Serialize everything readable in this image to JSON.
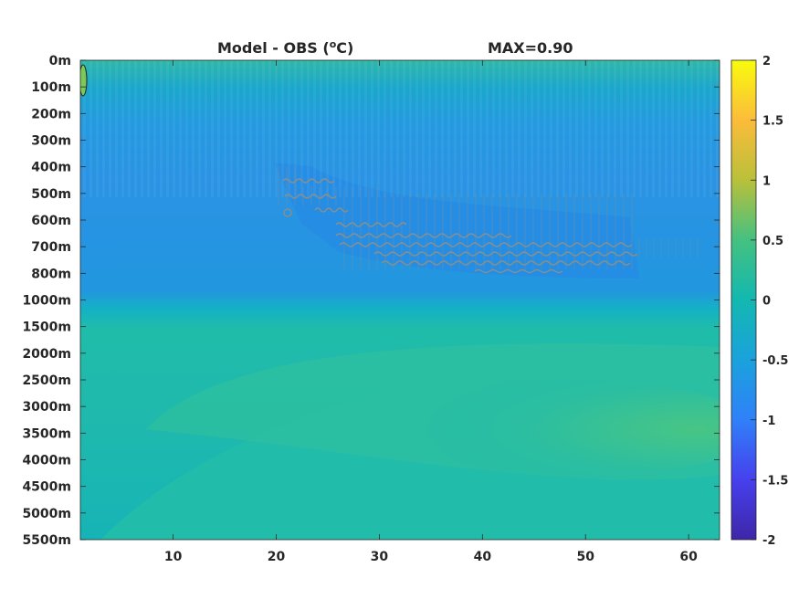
{
  "chart_data": {
    "type": "heatmap",
    "title": {
      "left_prefix": "Model - OBS (",
      "left_superscript": "o",
      "left_suffix": "C)",
      "right": "MAX=0.90"
    },
    "xlim": [
      1,
      63
    ],
    "x_ticks": [
      10,
      20,
      30,
      40,
      50,
      60
    ],
    "y_tick_labels": [
      "0m",
      "100m",
      "200m",
      "300m",
      "400m",
      "500m",
      "600m",
      "700m",
      "800m",
      "1000m",
      "1500m",
      "2000m",
      "2500m",
      "3000m",
      "3500m",
      "4000m",
      "4500m",
      "5000m",
      "5500m"
    ],
    "colorbar": {
      "range": [
        -2,
        2
      ],
      "ticks": [
        "2",
        "1.5",
        "1",
        "0.5",
        "0",
        "-0.5",
        "-1",
        "-1.5",
        "-2"
      ],
      "colormap": "parula"
    },
    "grid": false,
    "features": [
      {
        "name": "upper band",
        "depth_range": [
          "0m",
          "100m"
        ],
        "value": 0.1
      },
      {
        "name": "cold layer",
        "depth_range": [
          "200m",
          "1000m"
        ],
        "value": -0.6
      },
      {
        "name": "cold core",
        "x_range": [
          20,
          61
        ],
        "depth_range": [
          "400m",
          "800m"
        ],
        "value": -0.8
      },
      {
        "name": "deep warm tongue",
        "x_range": [
          20,
          63
        ],
        "depth_range": [
          "2500m",
          "4000m"
        ],
        "value": 0.3
      },
      {
        "name": "coastal patch",
        "x": 1,
        "depth": "100m",
        "value": 0.7
      }
    ]
  },
  "colors": {
    "plot_background": "#1ab5b3",
    "cold": "#2b8fe0",
    "cool": "#1aa2dc",
    "warm": "#3ac48a",
    "hot": "#7ac95a",
    "contour": "#8a8f8c"
  }
}
